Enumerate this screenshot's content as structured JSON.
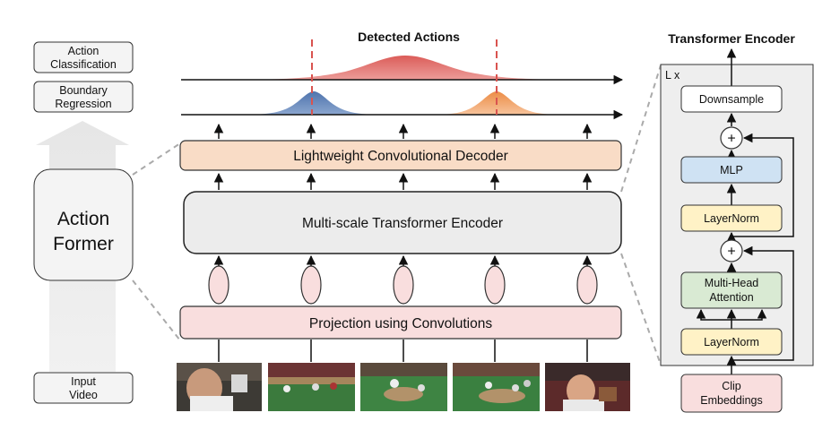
{
  "left_column": {
    "action_classification": [
      "Action",
      "Classification"
    ],
    "boundary_regression": [
      "Boundary",
      "Regression"
    ],
    "model_name": [
      "Action",
      "Former"
    ],
    "input_video": [
      "Input",
      "Video"
    ]
  },
  "center": {
    "detected_actions_title": "Detected Actions",
    "decoder_label": "Lightweight Convolutional Decoder",
    "encoder_label": "Multi-scale Transformer Encoder",
    "projection_label": "Projection using Convolutions"
  },
  "transformer_encoder": {
    "title": "Transformer Encoder",
    "repeat_label": "L x",
    "downsample": "Downsample",
    "mlp": "MLP",
    "layernorm_top": "LayerNorm",
    "attention": [
      "Multi-Head",
      "Attention"
    ],
    "layernorm_bottom": "LayerNorm",
    "clip_embeddings": [
      "Clip",
      "Embeddings"
    ],
    "plus_symbol": "+"
  },
  "colors": {
    "decoder_fill": "#f9dcc6",
    "projection_fill": "#f9dede",
    "encoder_fill": "#ececec",
    "token_fill": "#f9dede",
    "mlp_fill": "#cfe2f3",
    "layernorm_fill": "#fff2c6",
    "attention_fill": "#d9ead3",
    "clip_fill": "#f9dede",
    "encoder_panel_fill": "#eeeeee",
    "curve_red": "#d9534f",
    "curve_blue": "#5b7fb5",
    "curve_orange": "#ee9b5c",
    "dashed_red": "#d9534f"
  },
  "icons": [
    "plus-circle-icon",
    "arrow-up-icon"
  ]
}
